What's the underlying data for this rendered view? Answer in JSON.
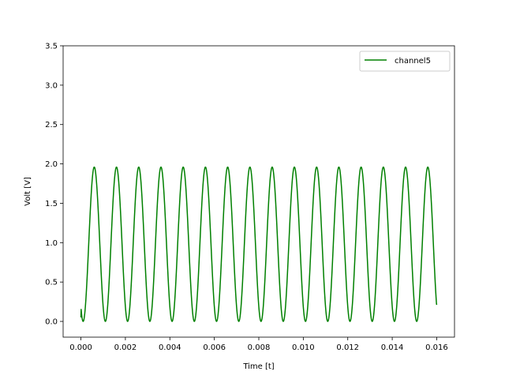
{
  "chart_data": {
    "type": "line",
    "title": "",
    "xlabel": "Time [t]",
    "ylabel": "Volt [V]",
    "xlim": [
      -0.0008,
      0.0168
    ],
    "ylim": [
      -0.2,
      3.5
    ],
    "x_ticks": [
      0.0,
      0.002,
      0.004,
      0.006,
      0.008,
      0.01,
      0.012,
      0.014,
      0.016
    ],
    "x_tick_labels": [
      "0.000",
      "0.002",
      "0.004",
      "0.006",
      "0.008",
      "0.010",
      "0.012",
      "0.014",
      "0.016"
    ],
    "y_ticks": [
      0.0,
      0.5,
      1.0,
      1.5,
      2.0,
      2.5,
      3.0,
      3.5
    ],
    "y_tick_labels": [
      "0.0",
      "0.5",
      "1.0",
      "1.5",
      "2.0",
      "2.5",
      "3.0",
      "3.5"
    ],
    "grid": false,
    "legend": {
      "position": "top-right",
      "entries": [
        "channel5"
      ]
    },
    "series": [
      {
        "name": "channel5",
        "color": "#008000",
        "waveform": {
          "shape": "sinusoid",
          "x_start": 0.0,
          "x_end": 0.016,
          "frequency_hz": 1000,
          "offset": 0.98,
          "amplitude": 0.98,
          "first_trough_x": 0.0001,
          "start_value": 0.05,
          "end_value": 0.21
        }
      }
    ]
  }
}
